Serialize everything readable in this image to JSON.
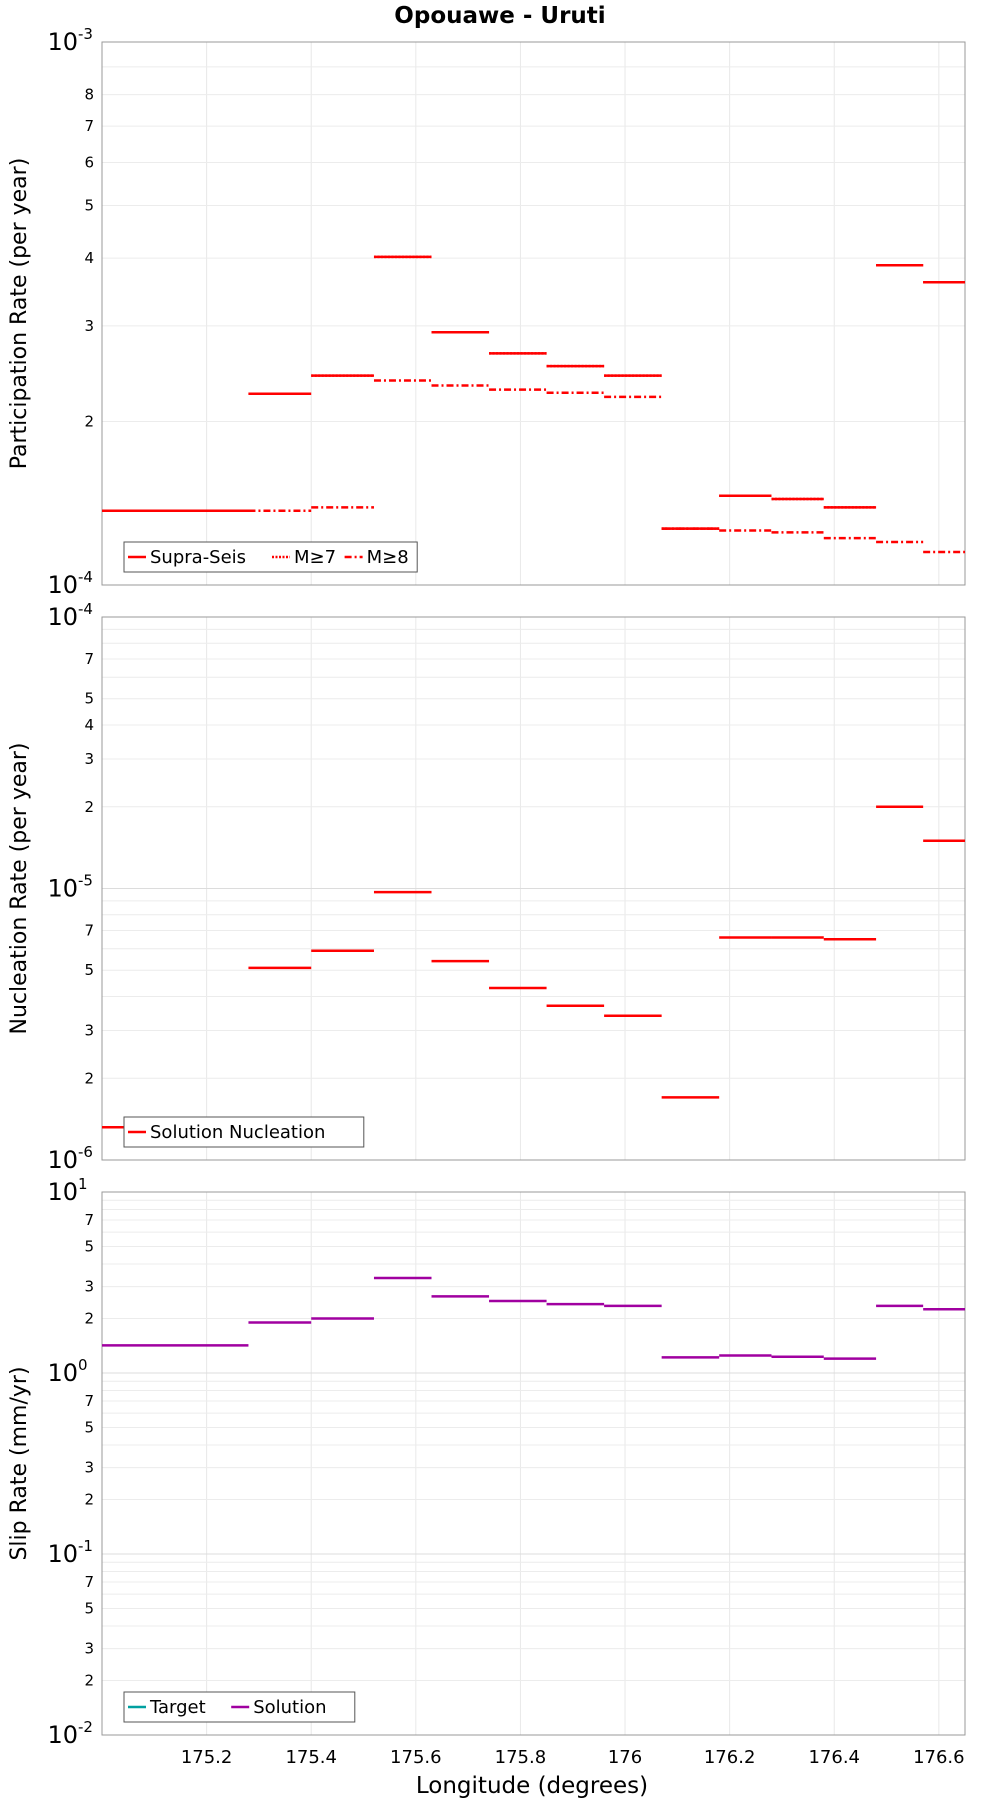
{
  "chart_data": [
    {
      "type": "line",
      "title": "Opouawe - Uruti",
      "ylabel": "Participation Rate (per year)",
      "xlabel": "",
      "yscale": "log",
      "ylim": [
        0.0001,
        0.001
      ],
      "xlim": [
        175.0,
        176.65
      ],
      "legend": [
        {
          "label": "Supra-Seis",
          "style": "solid",
          "color": "#ff0000"
        },
        {
          "label": "M≥7",
          "style": "dotted",
          "color": "#ff0000"
        },
        {
          "label": "M≥8",
          "style": "dashdot",
          "color": "#ff0000"
        }
      ],
      "segments_x": [
        [
          175.0,
          175.28
        ],
        [
          175.28,
          175.4
        ],
        [
          175.4,
          175.52
        ],
        [
          175.52,
          175.63
        ],
        [
          175.63,
          175.74
        ],
        [
          175.74,
          175.85
        ],
        [
          175.85,
          175.96
        ],
        [
          175.96,
          176.07
        ],
        [
          176.07,
          176.18
        ],
        [
          176.18,
          176.28
        ],
        [
          176.28,
          176.38
        ],
        [
          176.38,
          176.48
        ],
        [
          176.48,
          176.57
        ],
        [
          176.57,
          176.66
        ]
      ],
      "series": [
        {
          "name": "Supra-Seis",
          "style": "solid",
          "values": [
            0.000137,
            0.000225,
            0.000243,
            0.000402,
            0.000292,
            0.000267,
            0.000253,
            0.000243,
            0.000127,
            0.000146,
            0.000144,
            0.000139,
            0.000388,
            0.000361
          ]
        },
        {
          "name": "M≥7",
          "style": "dotted",
          "values": [
            0.000137,
            0.000225,
            0.000243,
            0.000402,
            0.000292,
            0.000267,
            0.000253,
            0.000243,
            0.000127,
            0.000146,
            0.000144,
            0.000139,
            0.000388,
            0.000361
          ]
        },
        {
          "name": "M≥8",
          "style": "dashdot",
          "values": [
            0.000137,
            0.000137,
            0.000139,
            0.000238,
            0.000233,
            0.000229,
            0.000226,
            0.000222,
            0.000127,
            0.000126,
            0.000125,
            0.000122,
            0.00012,
            0.000115
          ]
        }
      ]
    },
    {
      "type": "line",
      "title": "",
      "ylabel": "Nucleation Rate (per year)",
      "xlabel": "",
      "yscale": "log",
      "ylim": [
        1e-06,
        0.0001
      ],
      "xlim": [
        175.0,
        176.65
      ],
      "legend": [
        {
          "label": "Solution Nucleation",
          "style": "solid",
          "color": "#ff0000"
        }
      ],
      "segments_x": [
        [
          175.0,
          175.28
        ],
        [
          175.28,
          175.4
        ],
        [
          175.4,
          175.52
        ],
        [
          175.52,
          175.63
        ],
        [
          175.63,
          175.74
        ],
        [
          175.74,
          175.85
        ],
        [
          175.85,
          175.96
        ],
        [
          175.96,
          176.07
        ],
        [
          176.07,
          176.18
        ],
        [
          176.18,
          176.28
        ],
        [
          176.28,
          176.38
        ],
        [
          176.38,
          176.48
        ],
        [
          176.48,
          176.57
        ],
        [
          176.57,
          176.66
        ]
      ],
      "series": [
        {
          "name": "Solution Nucleation",
          "style": "solid",
          "values": [
            1.32e-06,
            5.1e-06,
            5.9e-06,
            9.7e-06,
            5.4e-06,
            4.3e-06,
            3.7e-06,
            3.4e-06,
            1.7e-06,
            6.6e-06,
            6.6e-06,
            6.5e-06,
            2e-05,
            1.5e-05
          ]
        }
      ]
    },
    {
      "type": "line",
      "title": "",
      "ylabel": "Slip Rate (mm/yr)",
      "xlabel": "Longitude (degrees)",
      "yscale": "log",
      "ylim": [
        0.01,
        10
      ],
      "xlim": [
        175.0,
        176.65
      ],
      "xticks": [
        "175.2",
        "175.4",
        "175.6",
        "175.8",
        "176",
        "176.2",
        "176.4",
        "176.6"
      ],
      "legend": [
        {
          "label": "Target",
          "style": "solid",
          "color": "#00a0a0"
        },
        {
          "label": "Solution",
          "style": "solid",
          "color": "#a000a0"
        }
      ],
      "segments_x": [
        [
          175.0,
          175.28
        ],
        [
          175.28,
          175.4
        ],
        [
          175.4,
          175.52
        ],
        [
          175.52,
          175.63
        ],
        [
          175.63,
          175.74
        ],
        [
          175.74,
          175.85
        ],
        [
          175.85,
          175.96
        ],
        [
          175.96,
          176.07
        ],
        [
          176.07,
          176.18
        ],
        [
          176.18,
          176.28
        ],
        [
          176.28,
          176.38
        ],
        [
          176.38,
          176.48
        ],
        [
          176.48,
          176.57
        ],
        [
          176.57,
          176.66
        ]
      ],
      "series": [
        {
          "name": "Solution",
          "style": "solid",
          "values": [
            1.42,
            1.9,
            2.0,
            3.35,
            2.65,
            2.5,
            2.4,
            2.35,
            1.22,
            1.25,
            1.23,
            1.2,
            2.35,
            2.25
          ]
        }
      ]
    }
  ]
}
